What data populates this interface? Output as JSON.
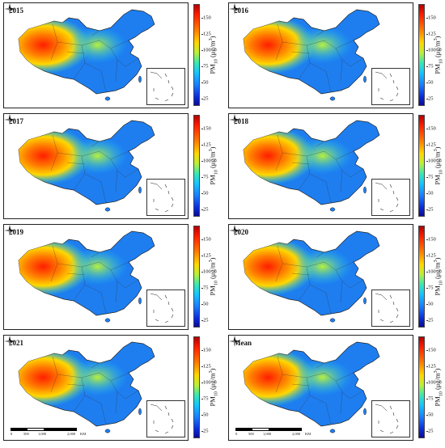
{
  "panels": [
    {
      "label": "2015"
    },
    {
      "label": "2016"
    },
    {
      "label": "2017"
    },
    {
      "label": "2018"
    },
    {
      "label": "2019"
    },
    {
      "label": "2020"
    },
    {
      "label": "2021"
    },
    {
      "label": "Mean"
    }
  ],
  "colorbar": {
    "ticks": [
      "150",
      "125",
      "100",
      "75",
      "50",
      "25"
    ],
    "unit_prefix": "PM",
    "unit_sub": "10",
    "unit_suffix": " (μg/m",
    "unit_sup": "3",
    "unit_close": ")",
    "colors": [
      "#b40000",
      "#ff1e00",
      "#ff7a00",
      "#ffd800",
      "#b8f03a",
      "#39e7b3",
      "#14c4ff",
      "#1a7cff",
      "#0b2ad8",
      "#0a0a96"
    ]
  },
  "scale_bar": {
    "ticks": [
      "0",
      "500",
      "1,000",
      "2,000"
    ],
    "unit": "KM"
  },
  "compass": {
    "letter": "N"
  }
}
